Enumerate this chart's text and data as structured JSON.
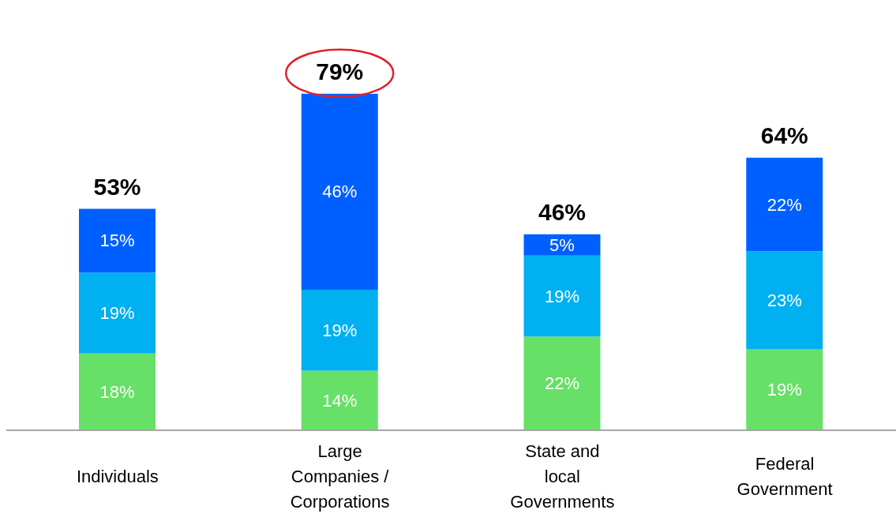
{
  "chart_data": {
    "type": "bar",
    "stacked": true,
    "categories": [
      "Individuals",
      "Large Companies / Corporations",
      "State and local Governments",
      "Federal Government"
    ],
    "series": [
      {
        "color": "#66e066",
        "values": [
          18,
          14,
          22,
          19
        ],
        "value_labels": [
          "18%",
          "14%",
          "22%",
          "19%"
        ]
      },
      {
        "color": "#00b0f0",
        "values": [
          19,
          19,
          19,
          23
        ],
        "value_labels": [
          "19%",
          "19%",
          "19%",
          "23%"
        ]
      },
      {
        "color": "#0060ff",
        "values": [
          15,
          46,
          5,
          22
        ],
        "value_labels": [
          "15%",
          "46%",
          "5%",
          "22%"
        ]
      }
    ],
    "totals": [
      "53%",
      "79%",
      "46%",
      "64%"
    ],
    "grid": false,
    "legend": false
  }
}
